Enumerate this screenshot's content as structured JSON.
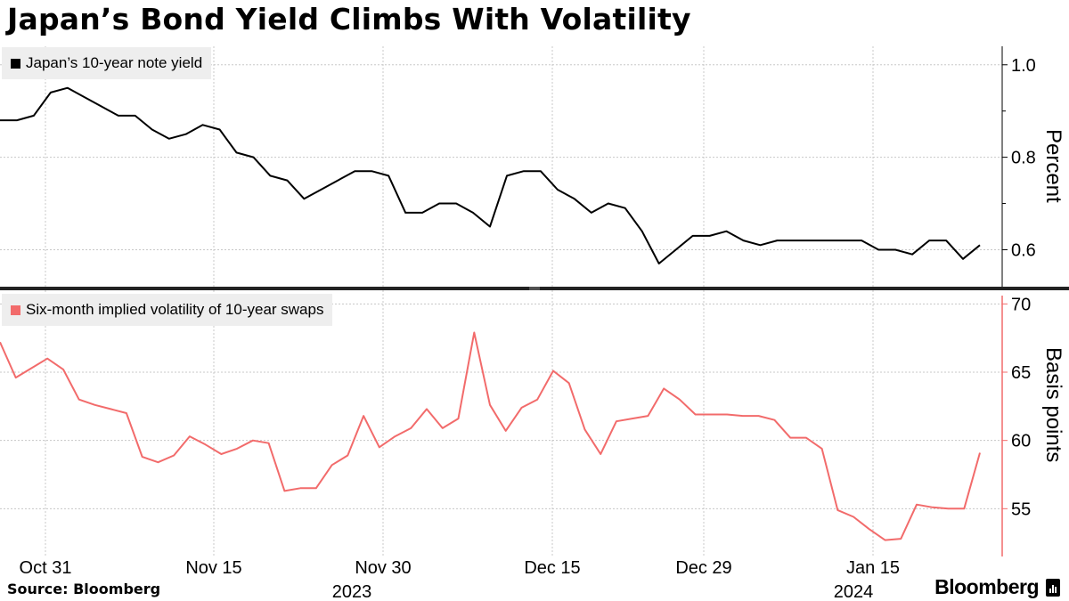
{
  "title": "Japan’s Bond Yield Climbs With Volatility",
  "source": "Source: Bloomberg",
  "brand": "Bloomberg",
  "colors": {
    "yield": "#000000",
    "volatility": "#f26b6b",
    "grid": "#c8c8c8",
    "legend_bg": "#eeeeee"
  },
  "chart_data": [
    {
      "type": "line",
      "legend": "Japan’s 10-year note yield",
      "ylabel": "Percent",
      "ylim": [
        0.52,
        1.04
      ],
      "yticks": [
        0.6,
        0.8,
        1.0
      ],
      "ytick_labels": [
        "0.6",
        "0.8",
        "1.0"
      ],
      "grid": true,
      "legend_position": "top-left",
      "series": [
        {
          "x": [
            "2023-10-27",
            "2023-10-30",
            "2023-10-31",
            "2023-11-01",
            "2023-11-02",
            "2023-11-06",
            "2023-11-07",
            "2023-11-08",
            "2023-11-09",
            "2023-11-10",
            "2023-11-13",
            "2023-11-14",
            "2023-11-15",
            "2023-11-16",
            "2023-11-17",
            "2023-11-20",
            "2023-11-21",
            "2023-11-22",
            "2023-11-24",
            "2023-11-27",
            "2023-11-28",
            "2023-11-29",
            "2023-11-30",
            "2023-12-01",
            "2023-12-04",
            "2023-12-05",
            "2023-12-06",
            "2023-12-07",
            "2023-12-08",
            "2023-12-11",
            "2023-12-12",
            "2023-12-13",
            "2023-12-14",
            "2023-12-15",
            "2023-12-18",
            "2023-12-19",
            "2023-12-20",
            "2023-12-21",
            "2023-12-22",
            "2023-12-25",
            "2023-12-26",
            "2023-12-27",
            "2023-12-28",
            "2023-12-29",
            "2024-01-04",
            "2024-01-05",
            "2024-01-09",
            "2024-01-10",
            "2024-01-11",
            "2024-01-12",
            "2024-01-15",
            "2024-01-16",
            "2024-01-17",
            "2024-01-18",
            "2024-01-19",
            "2024-01-22",
            "2024-01-23",
            "2024-01-24",
            "2024-01-25"
          ],
          "y": [
            0.88,
            0.88,
            0.89,
            0.94,
            0.95,
            0.93,
            0.91,
            0.89,
            0.89,
            0.86,
            0.84,
            0.85,
            0.87,
            0.86,
            0.81,
            0.8,
            0.76,
            0.75,
            0.71,
            0.73,
            0.75,
            0.77,
            0.77,
            0.76,
            0.68,
            0.68,
            0.7,
            0.7,
            0.68,
            0.65,
            0.76,
            0.77,
            0.77,
            0.73,
            0.71,
            0.68,
            0.7,
            0.69,
            0.64,
            0.57,
            0.6,
            0.63,
            0.63,
            0.64,
            0.62,
            0.61,
            0.62,
            0.62,
            0.62,
            0.62,
            0.62,
            0.62,
            0.6,
            0.6,
            0.59,
            0.62,
            0.62,
            0.58,
            0.61
          ]
        }
      ]
    },
    {
      "type": "line",
      "legend": "Six-month implied volatility of 10-year swaps",
      "ylabel": "Basis points",
      "ylim": [
        51.5,
        71
      ],
      "yticks": [
        55,
        60,
        65,
        70
      ],
      "ytick_labels": [
        "55",
        "60",
        "65",
        "70"
      ],
      "xtick_labels": [
        "Oct 31",
        "Nov 15",
        "Nov 30",
        "Dec 15",
        "Dec 29",
        "Jan 15"
      ],
      "year_labels": [
        "2023",
        "2024"
      ],
      "grid": true,
      "legend_position": "top-left",
      "series": [
        {
          "values": [
            67.2,
            64.6,
            65.3,
            66.0,
            65.2,
            63.0,
            62.6,
            62.3,
            62.0,
            58.8,
            58.4,
            58.9,
            60.3,
            59.7,
            59.0,
            59.4,
            60.0,
            59.8,
            56.3,
            56.5,
            56.5,
            58.2,
            58.9,
            61.8,
            59.5,
            60.3,
            60.9,
            62.3,
            60.9,
            61.6,
            67.9,
            62.6,
            60.7,
            62.4,
            63.0,
            65.1,
            64.2,
            60.8,
            59.0,
            61.4,
            61.6,
            61.8,
            63.8,
            63.0,
            61.9,
            61.9,
            61.9,
            61.8,
            61.8,
            61.5,
            60.2,
            60.2,
            59.4,
            54.9,
            54.4,
            53.5,
            52.7,
            52.8,
            55.3,
            55.1,
            55.0,
            55.0,
            59.1
          ]
        }
      ]
    }
  ]
}
